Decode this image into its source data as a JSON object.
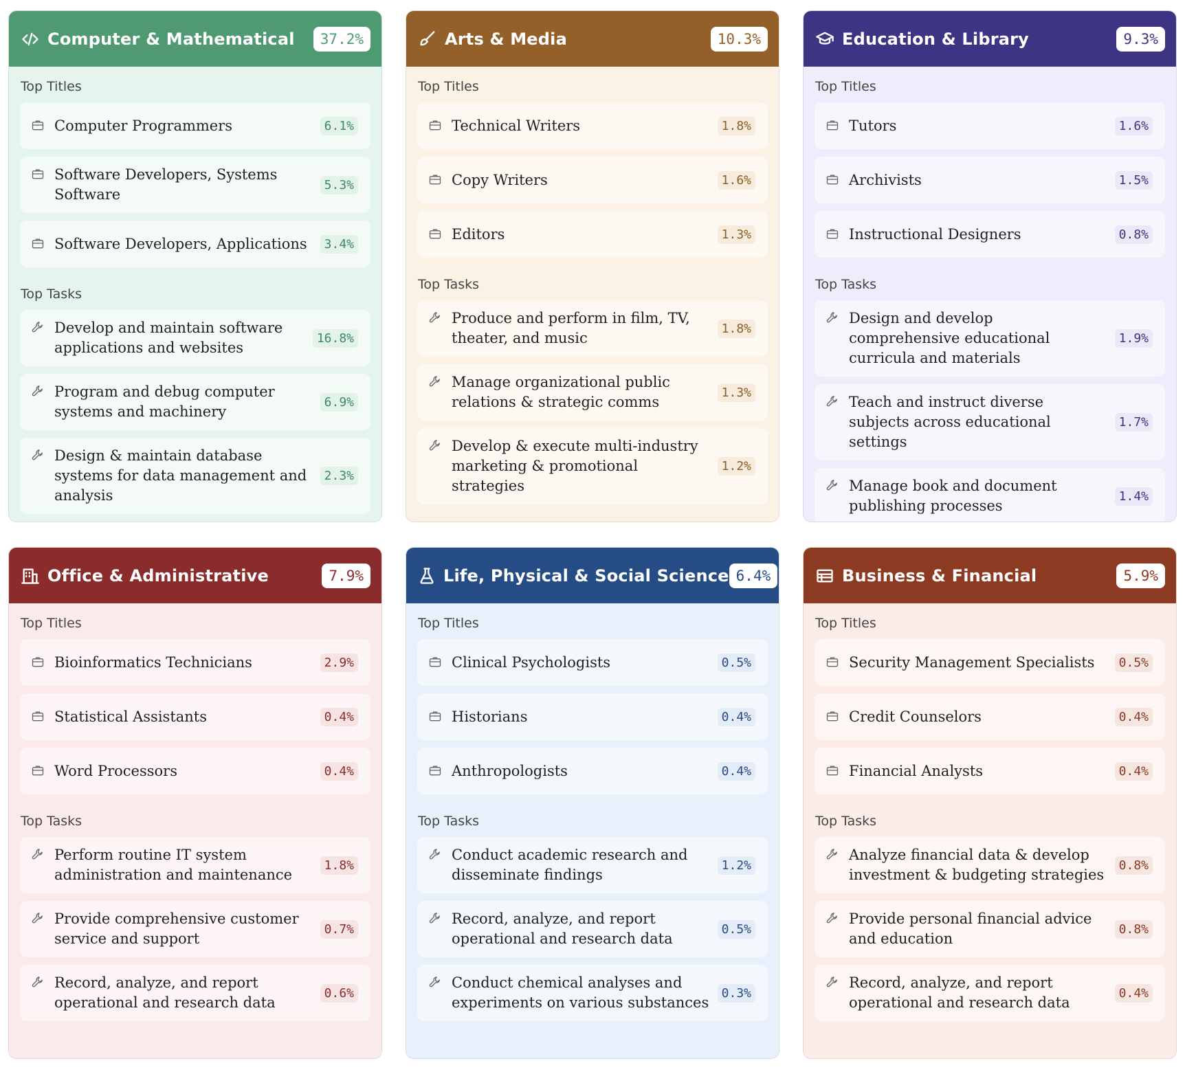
{
  "cards": [
    {
      "title": "Computer & Mathematical",
      "percent": "37.2%",
      "icon": "code-icon",
      "colors": {
        "header": "#4f9a73",
        "body": "#e5f5ee",
        "item": "#f4fbf7",
        "value": "#3d8a63",
        "valuebg": "#e4f3ea"
      },
      "titles_label": "Top Titles",
      "tasks_label": "Top Tasks",
      "titles": [
        {
          "label": "Computer Programmers",
          "value": "6.1%"
        },
        {
          "label": "Software Developers, Systems Software",
          "value": "5.3%"
        },
        {
          "label": "Software Developers, Applications",
          "value": "3.4%"
        }
      ],
      "tasks": [
        {
          "label": "Develop and maintain software applications and websites",
          "value": "16.8%"
        },
        {
          "label": "Program and debug computer systems and machinery",
          "value": "6.9%"
        },
        {
          "label": "Design & maintain database systems for data management and analysis",
          "value": "2.3%"
        }
      ]
    },
    {
      "title": "Arts & Media",
      "percent": "10.3%",
      "icon": "brush-icon",
      "colors": {
        "header": "#93602a",
        "body": "#fbf1e4",
        "item": "#fdf8f1",
        "value": "#8c5f25",
        "valuebg": "#f6ebdc"
      },
      "titles_label": "Top Titles",
      "tasks_label": "Top Tasks",
      "titles": [
        {
          "label": "Technical Writers",
          "value": "1.8%"
        },
        {
          "label": "Copy Writers",
          "value": "1.6%"
        },
        {
          "label": "Editors",
          "value": "1.3%"
        }
      ],
      "tasks": [
        {
          "label": "Produce and perform in film, TV, theater, and music",
          "value": "1.8%"
        },
        {
          "label": "Manage organizational public relations & strategic comms",
          "value": "1.3%"
        },
        {
          "label": "Develop & execute multi-industry marketing & promotional strategies",
          "value": "1.2%"
        }
      ]
    },
    {
      "title": "Education & Library",
      "percent": "9.3%",
      "icon": "graduation-cap-icon",
      "colors": {
        "header": "#3d3584",
        "body": "#eeedfb",
        "item": "#f7f6fd",
        "value": "#3d3584",
        "valuebg": "#ebe9f8"
      },
      "titles_label": "Top Titles",
      "tasks_label": "Top Tasks",
      "titles": [
        {
          "label": "Tutors",
          "value": "1.6%"
        },
        {
          "label": "Archivists",
          "value": "1.5%"
        },
        {
          "label": "Instructional Designers",
          "value": "0.8%"
        }
      ],
      "tasks": [
        {
          "label": "Design and develop comprehensive educational curricula and materials",
          "value": "1.9%"
        },
        {
          "label": "Teach and instruct diverse subjects across educational settings",
          "value": "1.7%"
        },
        {
          "label": "Manage book and document publishing processes",
          "value": "1.4%"
        }
      ]
    },
    {
      "title": "Office & Administrative",
      "percent": "7.9%",
      "icon": "building-icon",
      "colors": {
        "header": "#8a2c2c",
        "body": "#fbeaea",
        "item": "#fdf5f5",
        "value": "#8a2c2c",
        "valuebg": "#f6e4e4"
      },
      "titles_label": "Top Titles",
      "tasks_label": "Top Tasks",
      "titles": [
        {
          "label": "Bioinformatics Technicians",
          "value": "2.9%"
        },
        {
          "label": "Statistical Assistants",
          "value": "0.4%"
        },
        {
          "label": "Word Processors",
          "value": "0.4%"
        }
      ],
      "tasks": [
        {
          "label": "Perform routine IT system administration and maintenance",
          "value": "1.8%"
        },
        {
          "label": "Provide comprehensive customer service and support",
          "value": "0.7%"
        },
        {
          "label": "Record, analyze, and report operational and research data",
          "value": "0.6%"
        }
      ]
    },
    {
      "title": "Life, Physical & Social Science",
      "percent": "6.4%",
      "icon": "flask-icon",
      "colors": {
        "header": "#254c85",
        "body": "#e8f0fb",
        "item": "#f4f8fd",
        "value": "#254c85",
        "valuebg": "#e4ecf7"
      },
      "titles_label": "Top Titles",
      "tasks_label": "Top Tasks",
      "titles": [
        {
          "label": "Clinical Psychologists",
          "value": "0.5%"
        },
        {
          "label": "Historians",
          "value": "0.4%"
        },
        {
          "label": "Anthropologists",
          "value": "0.4%"
        }
      ],
      "tasks": [
        {
          "label": "Conduct academic research and disseminate findings",
          "value": "1.2%"
        },
        {
          "label": "Record, analyze, and report operational and research data",
          "value": "0.5%"
        },
        {
          "label": "Conduct chemical analyses and experiments on various substances",
          "value": "0.3%"
        }
      ]
    },
    {
      "title": "Business & Financial",
      "percent": "5.9%",
      "icon": "ledger-icon",
      "colors": {
        "header": "#8d3a22",
        "body": "#fbece8",
        "item": "#fdf6f4",
        "value": "#8d3a22",
        "valuebg": "#f6e6e1"
      },
      "titles_label": "Top Titles",
      "tasks_label": "Top Tasks",
      "titles": [
        {
          "label": "Security Management Specialists",
          "value": "0.5%"
        },
        {
          "label": "Credit Counselors",
          "value": "0.4%"
        },
        {
          "label": "Financial Analysts",
          "value": "0.4%"
        }
      ],
      "tasks": [
        {
          "label": "Analyze financial data & develop investment & budgeting strategies",
          "value": "0.8%"
        },
        {
          "label": "Provide personal financial advice and education",
          "value": "0.8%"
        },
        {
          "label": "Record, analyze, and report operational and research data",
          "value": "0.4%"
        }
      ]
    }
  ]
}
